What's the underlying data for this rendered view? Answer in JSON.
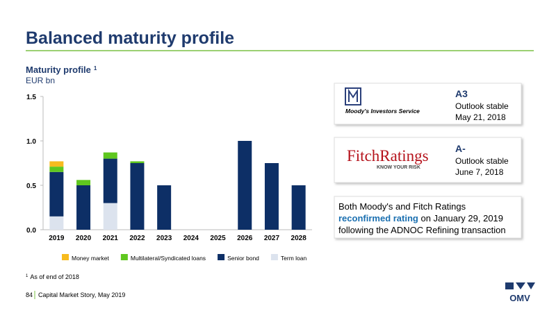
{
  "slide": {
    "title": "Balanced maturity profile",
    "footnote_marker": "1",
    "footnote": "As of end of 2018",
    "page": "84",
    "footer": "Capital Market Story, May 2019",
    "logo": "OMV"
  },
  "chart_data": {
    "type": "stacked_bar",
    "title": "Maturity profile",
    "title_note": "1",
    "subtitle": "EUR bn",
    "categories": [
      "2019",
      "2020",
      "2021",
      "2022",
      "2023",
      "2024",
      "2025",
      "2026",
      "2027",
      "2028"
    ],
    "series": [
      {
        "name": "Term loan",
        "color": "#dce3ee",
        "values": [
          0.15,
          0,
          0.3,
          0,
          0,
          0,
          0,
          0,
          0,
          0
        ]
      },
      {
        "name": "Senior bond",
        "color": "#0d2f66",
        "values": [
          0.5,
          0.5,
          0.5,
          0.75,
          0.5,
          0,
          0,
          1.0,
          0.75,
          0.5
        ]
      },
      {
        "name": "Multilateral/Syndicated loans",
        "color": "#5fc71f",
        "values": [
          0.06,
          0.06,
          0.07,
          0.02,
          0,
          0,
          0,
          0,
          0,
          0
        ]
      },
      {
        "name": "Money market",
        "color": "#f7bb1e",
        "values": [
          0.06,
          0,
          0,
          0,
          0,
          0,
          0,
          0,
          0,
          0
        ]
      }
    ],
    "legend_order": [
      3,
      2,
      1,
      0
    ],
    "ylim": [
      0,
      1.5
    ],
    "yticks": [
      {
        "value": 0,
        "label": "0.0"
      },
      0.5,
      {
        "value": 1,
        "label": "1.0"
      },
      1.5
    ],
    "legend": "bottom"
  },
  "ratings": [
    {
      "agency": "Moody's Investors Service",
      "rating": "A3",
      "outlook": "Outlook stable",
      "date": "May 21, 2018"
    },
    {
      "agency": "FitchRatings",
      "tagline": "KNOW YOUR RISK",
      "rating": "A-",
      "outlook": "Outlook stable",
      "date": "June 7, 2018"
    }
  ],
  "note": {
    "line1": "Both Moody's and Fitch Ratings",
    "highlight": "reconfirmed rating",
    "line2_rest": " on January 29, 2019",
    "line3": "following the ADNOC Refining transaction"
  }
}
